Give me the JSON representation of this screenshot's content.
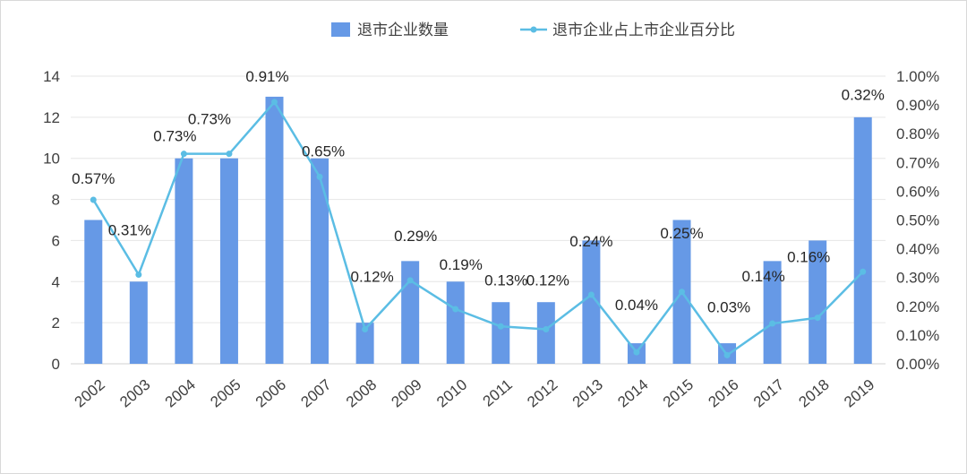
{
  "chart_data": {
    "type": "bar",
    "categories": [
      "2002",
      "2003",
      "2004",
      "2005",
      "2006",
      "2007",
      "2008",
      "2009",
      "2010",
      "2011",
      "2012",
      "2013",
      "2014",
      "2015",
      "2016",
      "2017",
      "2018",
      "2019"
    ],
    "series": [
      {
        "name": "退市企业数量",
        "type": "bar",
        "axis": "left",
        "color": "#6699e6",
        "values": [
          7,
          4,
          10,
          10,
          13,
          10,
          2,
          5,
          4,
          3,
          3,
          6,
          1,
          7,
          1,
          5,
          6,
          12
        ]
      },
      {
        "name": "退市企业占上市企业百分比",
        "type": "line",
        "axis": "right",
        "color": "#5bbde4",
        "values": [
          0.57,
          0.31,
          0.73,
          0.73,
          0.91,
          0.65,
          0.12,
          0.29,
          0.19,
          0.13,
          0.12,
          0.24,
          0.04,
          0.25,
          0.03,
          0.14,
          0.16,
          0.32
        ],
        "labels": [
          "0.57%",
          "0.31%",
          "0.73%",
          "0.73%",
          "0.91%",
          "0.65%",
          "0.12%",
          "0.29%",
          "0.19%",
          "0.13%",
          "0.12%",
          "0.24%",
          "0.04%",
          "0.25%",
          "0.03%",
          "0.14%",
          "0.16%",
          "0.32%"
        ]
      }
    ],
    "y_left": {
      "min": 0,
      "max": 14,
      "ticks": [
        "0",
        "2",
        "4",
        "6",
        "8",
        "10",
        "12",
        "14"
      ]
    },
    "y_right": {
      "min": 0,
      "max": 1,
      "ticks": [
        "0.00%",
        "0.10%",
        "0.20%",
        "0.30%",
        "0.40%",
        "0.50%",
        "0.60%",
        "0.70%",
        "0.80%",
        "0.90%",
        "1.00%"
      ]
    },
    "grid": true,
    "legend": "top-center"
  }
}
